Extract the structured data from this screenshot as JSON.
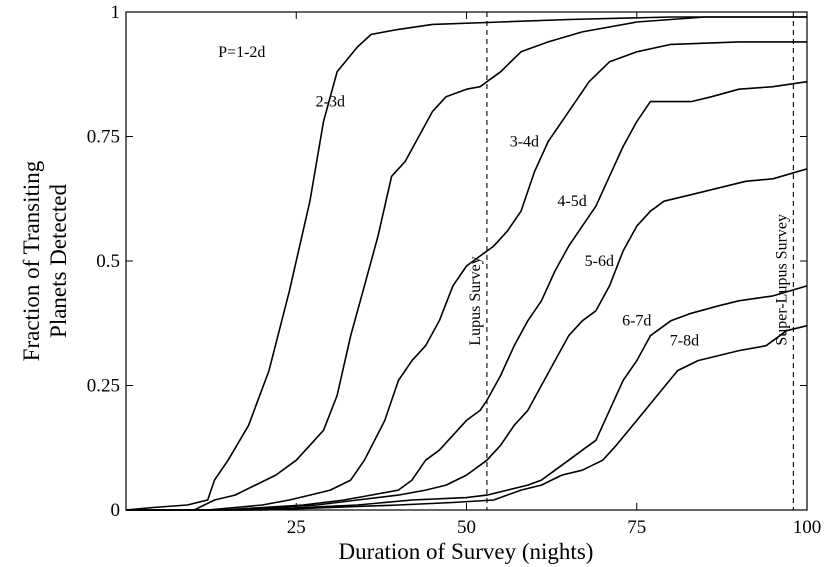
{
  "chart_data": {
    "type": "line",
    "xlabel": "Duration of Survey (nights)",
    "ylabel_lines": [
      "Fraction of Transiting",
      "Planets Detected"
    ],
    "xlim": [
      0,
      100
    ],
    "ylim": [
      0,
      1
    ],
    "xticks": [
      25,
      50,
      75,
      100
    ],
    "xtick_labels": [
      "25",
      "50",
      "75",
      "100"
    ],
    "yticks": [
      0,
      0.25,
      0.5,
      0.75,
      1
    ],
    "ytick_labels": [
      "0",
      "0.25",
      "0.5",
      "0.75",
      "1"
    ],
    "grid": false,
    "legend": "none",
    "line_color": "#000000",
    "series": [
      {
        "label": "P=1-2d",
        "points": [
          [
            0,
            0
          ],
          [
            4,
            0.005
          ],
          [
            9,
            0.01
          ],
          [
            12,
            0.02
          ],
          [
            13,
            0.06
          ],
          [
            15,
            0.1
          ],
          [
            18,
            0.17
          ],
          [
            21,
            0.28
          ],
          [
            24,
            0.44
          ],
          [
            27,
            0.62
          ],
          [
            29,
            0.78
          ],
          [
            31,
            0.88
          ],
          [
            34,
            0.93
          ],
          [
            36,
            0.955
          ],
          [
            40,
            0.965
          ],
          [
            45,
            0.975
          ],
          [
            55,
            0.98
          ],
          [
            65,
            0.985
          ],
          [
            80,
            0.99
          ],
          [
            100,
            0.99
          ]
        ]
      },
      {
        "label": "2-3d",
        "points": [
          [
            0,
            0
          ],
          [
            10,
            0
          ],
          [
            13,
            0.02
          ],
          [
            16,
            0.03
          ],
          [
            19,
            0.05
          ],
          [
            22,
            0.07
          ],
          [
            25,
            0.1
          ],
          [
            27,
            0.13
          ],
          [
            29,
            0.16
          ],
          [
            31,
            0.23
          ],
          [
            33,
            0.35
          ],
          [
            35,
            0.45
          ],
          [
            37,
            0.55
          ],
          [
            39,
            0.67
          ],
          [
            41,
            0.7
          ],
          [
            43,
            0.75
          ],
          [
            45,
            0.8
          ],
          [
            47,
            0.83
          ],
          [
            50,
            0.845
          ],
          [
            52,
            0.85
          ],
          [
            55,
            0.88
          ],
          [
            58,
            0.92
          ],
          [
            62,
            0.94
          ],
          [
            67,
            0.96
          ],
          [
            75,
            0.98
          ],
          [
            85,
            0.99
          ],
          [
            100,
            0.99
          ]
        ]
      },
      {
        "label": "3-4d",
        "points": [
          [
            0,
            0
          ],
          [
            12,
            0
          ],
          [
            16,
            0.005
          ],
          [
            20,
            0.01
          ],
          [
            24,
            0.02
          ],
          [
            27,
            0.03
          ],
          [
            30,
            0.04
          ],
          [
            33,
            0.06
          ],
          [
            35,
            0.1
          ],
          [
            38,
            0.18
          ],
          [
            40,
            0.26
          ],
          [
            42,
            0.3
          ],
          [
            44,
            0.33
          ],
          [
            46,
            0.38
          ],
          [
            48,
            0.45
          ],
          [
            50,
            0.49
          ],
          [
            52,
            0.51
          ],
          [
            54,
            0.53
          ],
          [
            56,
            0.56
          ],
          [
            58,
            0.6
          ],
          [
            60,
            0.68
          ],
          [
            62,
            0.74
          ],
          [
            65,
            0.8
          ],
          [
            68,
            0.86
          ],
          [
            71,
            0.9
          ],
          [
            75,
            0.92
          ],
          [
            80,
            0.935
          ],
          [
            90,
            0.94
          ],
          [
            100,
            0.94
          ]
        ]
      },
      {
        "label": "4-5d",
        "points": [
          [
            0,
            0
          ],
          [
            14,
            0
          ],
          [
            20,
            0.005
          ],
          [
            26,
            0.01
          ],
          [
            32,
            0.02
          ],
          [
            36,
            0.03
          ],
          [
            40,
            0.04
          ],
          [
            42,
            0.06
          ],
          [
            44,
            0.1
          ],
          [
            46,
            0.12
          ],
          [
            48,
            0.15
          ],
          [
            50,
            0.18
          ],
          [
            52,
            0.2
          ],
          [
            53,
            0.22
          ],
          [
            55,
            0.27
          ],
          [
            57,
            0.33
          ],
          [
            59,
            0.38
          ],
          [
            61,
            0.42
          ],
          [
            63,
            0.48
          ],
          [
            65,
            0.53
          ],
          [
            67,
            0.57
          ],
          [
            69,
            0.61
          ],
          [
            71,
            0.67
          ],
          [
            73,
            0.73
          ],
          [
            75,
            0.78
          ],
          [
            77,
            0.82
          ],
          [
            80,
            0.82
          ],
          [
            83,
            0.82
          ],
          [
            86,
            0.83
          ],
          [
            90,
            0.845
          ],
          [
            95,
            0.85
          ],
          [
            100,
            0.86
          ]
        ]
      },
      {
        "label": "5-6d",
        "points": [
          [
            0,
            0
          ],
          [
            16,
            0
          ],
          [
            22,
            0.005
          ],
          [
            28,
            0.01
          ],
          [
            34,
            0.02
          ],
          [
            40,
            0.03
          ],
          [
            44,
            0.04
          ],
          [
            47,
            0.05
          ],
          [
            50,
            0.07
          ],
          [
            52,
            0.09
          ],
          [
            53,
            0.1
          ],
          [
            55,
            0.13
          ],
          [
            57,
            0.17
          ],
          [
            59,
            0.2
          ],
          [
            61,
            0.25
          ],
          [
            63,
            0.3
          ],
          [
            65,
            0.35
          ],
          [
            67,
            0.38
          ],
          [
            69,
            0.4
          ],
          [
            71,
            0.45
          ],
          [
            73,
            0.52
          ],
          [
            75,
            0.57
          ],
          [
            77,
            0.6
          ],
          [
            79,
            0.62
          ],
          [
            82,
            0.63
          ],
          [
            85,
            0.64
          ],
          [
            88,
            0.65
          ],
          [
            91,
            0.66
          ],
          [
            95,
            0.665
          ],
          [
            100,
            0.685
          ]
        ]
      },
      {
        "label": "6-7d",
        "points": [
          [
            0,
            0
          ],
          [
            18,
            0
          ],
          [
            26,
            0.005
          ],
          [
            34,
            0.01
          ],
          [
            42,
            0.02
          ],
          [
            50,
            0.025
          ],
          [
            53,
            0.03
          ],
          [
            56,
            0.04
          ],
          [
            59,
            0.05
          ],
          [
            61,
            0.06
          ],
          [
            63,
            0.08
          ],
          [
            65,
            0.1
          ],
          [
            67,
            0.12
          ],
          [
            69,
            0.14
          ],
          [
            71,
            0.2
          ],
          [
            73,
            0.26
          ],
          [
            75,
            0.3
          ],
          [
            77,
            0.35
          ],
          [
            80,
            0.38
          ],
          [
            83,
            0.395
          ],
          [
            87,
            0.41
          ],
          [
            90,
            0.42
          ],
          [
            95,
            0.43
          ],
          [
            100,
            0.45
          ]
        ]
      },
      {
        "label": "7-8d",
        "points": [
          [
            0,
            0
          ],
          [
            20,
            0
          ],
          [
            30,
            0.005
          ],
          [
            40,
            0.01
          ],
          [
            48,
            0.015
          ],
          [
            54,
            0.02
          ],
          [
            58,
            0.04
          ],
          [
            61,
            0.05
          ],
          [
            64,
            0.07
          ],
          [
            67,
            0.08
          ],
          [
            70,
            0.1
          ],
          [
            72,
            0.13
          ],
          [
            75,
            0.18
          ],
          [
            78,
            0.23
          ],
          [
            81,
            0.28
          ],
          [
            84,
            0.3
          ],
          [
            87,
            0.31
          ],
          [
            90,
            0.32
          ],
          [
            94,
            0.33
          ],
          [
            97,
            0.36
          ],
          [
            100,
            0.37
          ]
        ]
      }
    ],
    "curve_labels": [
      {
        "text": "P=1-2d",
        "x": 17,
        "y": 0.91
      },
      {
        "text": "2-3d",
        "x": 30,
        "y": 0.81
      },
      {
        "text": "3-4d",
        "x": 58.5,
        "y": 0.73
      },
      {
        "text": "4-5d",
        "x": 65.5,
        "y": 0.61
      },
      {
        "text": "5-6d",
        "x": 69.5,
        "y": 0.49
      },
      {
        "text": "6-7d",
        "x": 75,
        "y": 0.37
      },
      {
        "text": "7-8d",
        "x": 82,
        "y": 0.33
      }
    ],
    "vlines": [
      {
        "x": 53,
        "label": "Lupus Survey",
        "label_y": 0.33
      },
      {
        "x": 98,
        "label": "Super-Lupus Survey",
        "label_y": 0.33
      }
    ]
  }
}
